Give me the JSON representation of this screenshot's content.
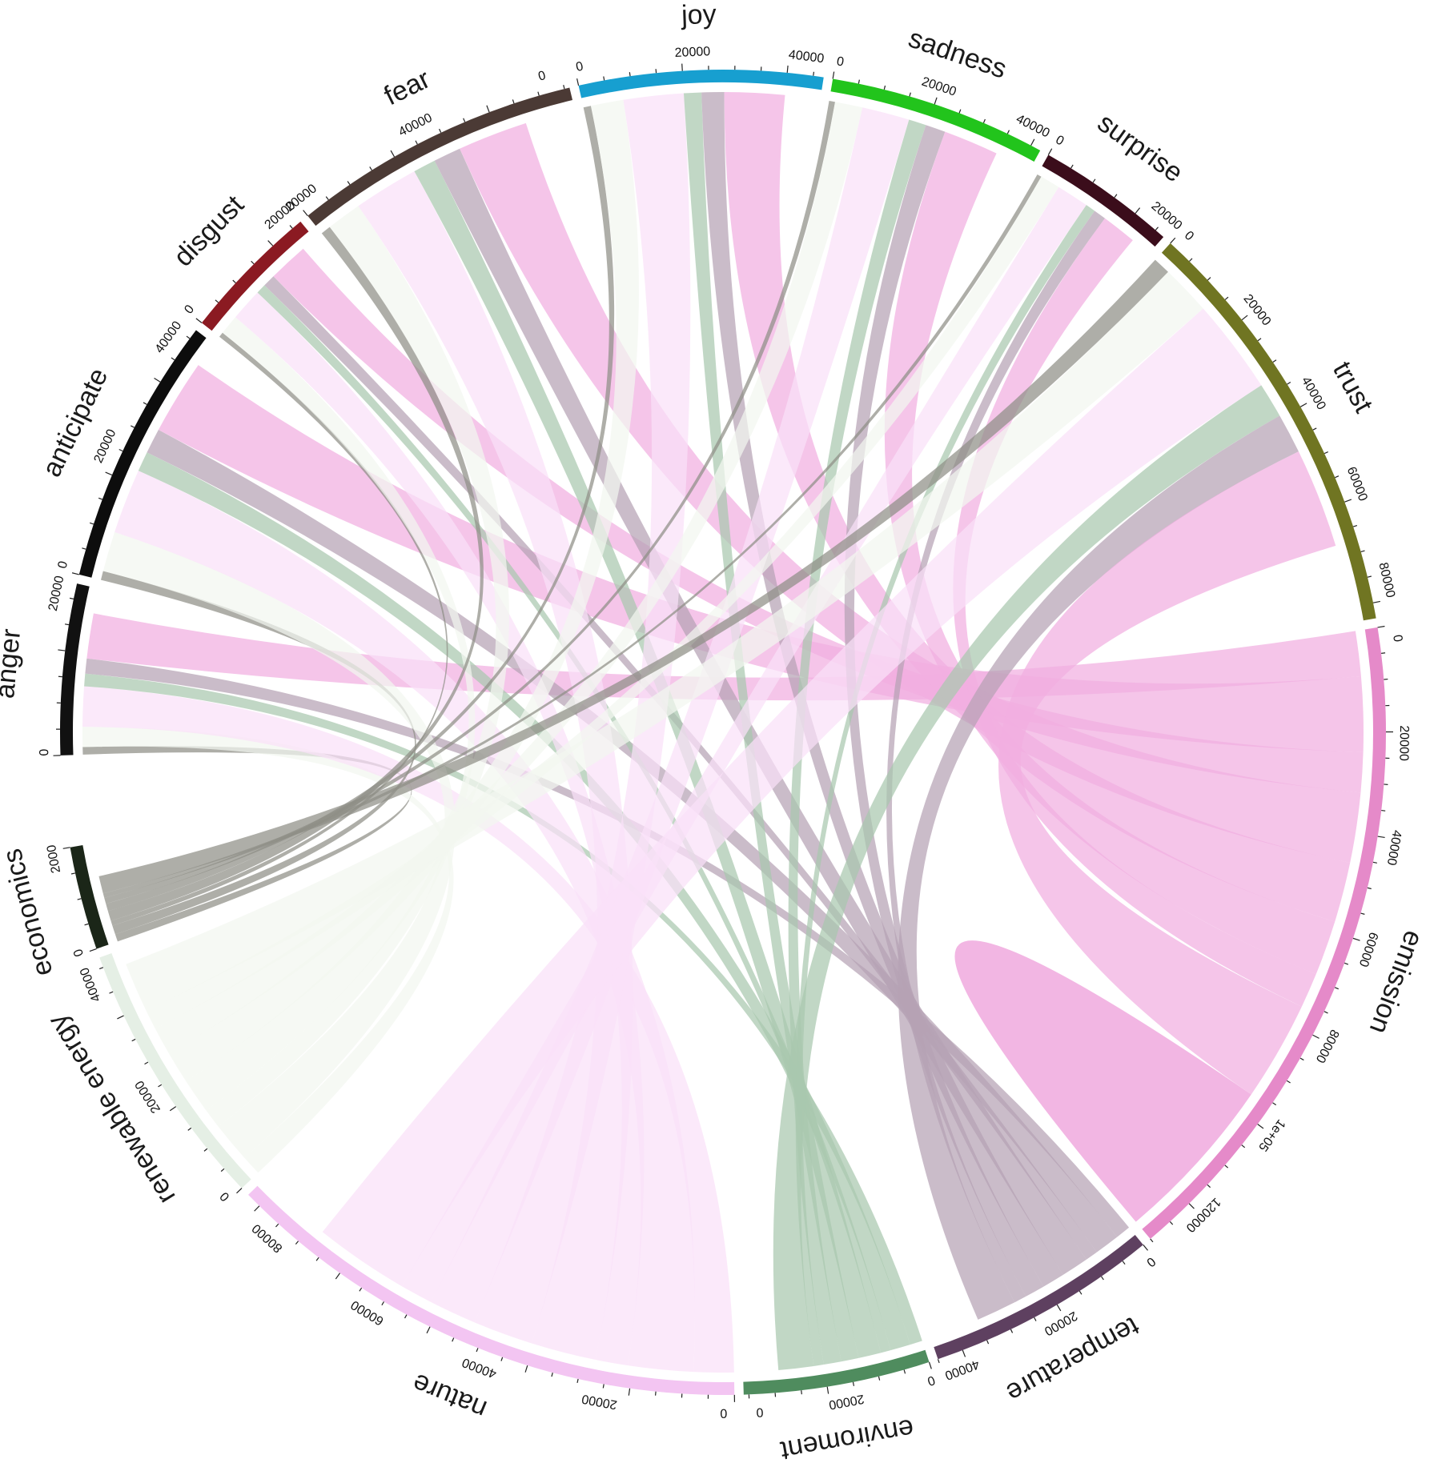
{
  "chart_data": {
    "type": "chord",
    "title": "",
    "sectors": [
      {
        "name": "anger",
        "color": "#111111",
        "total": 33000,
        "ticks": [
          0,
          20000
        ]
      },
      {
        "name": "anticipate",
        "color": "#0d0d0d",
        "total": 52000,
        "ticks": [
          0,
          20000,
          40000
        ]
      },
      {
        "name": "disgust",
        "color": "#8b1a22",
        "total": 27000,
        "ticks": [
          0,
          20000
        ]
      },
      {
        "name": "fear",
        "color": "#4b3a35",
        "total": 56000,
        "ticks": [
          20000,
          40000,
          0
        ]
      },
      {
        "name": "joy",
        "color": "#179fd0",
        "total": 47000,
        "ticks": [
          0,
          20000,
          40000
        ]
      },
      {
        "name": "sadness",
        "color": "#22c41c",
        "total": 42000,
        "ticks": [
          0,
          20000,
          40000
        ]
      },
      {
        "name": "surprise",
        "color": "#3b0d1b",
        "total": 27000,
        "ticks": [
          0,
          20000
        ]
      },
      {
        "name": "trust",
        "color": "#707522",
        "total": 83000,
        "ticks": [
          0,
          20000,
          40000,
          60000,
          80000
        ]
      },
      {
        "name": "emission",
        "color": "#e58ac9",
        "total": 130000,
        "ticks": [
          0,
          20000,
          40000,
          60000,
          "80000",
          "1e+05",
          120000
        ]
      },
      {
        "name": "temperature",
        "color": "#5e4060",
        "total": 45000,
        "ticks": [
          0,
          20000,
          40000
        ]
      },
      {
        "name": "enviroment",
        "color": "#4f8c5e",
        "total": 36000,
        "ticks": [
          0,
          "20000",
          0
        ]
      },
      {
        "name": "nature",
        "color": "#f3c5f2",
        "total": 103000,
        "ticks": [
          0,
          20000,
          40000,
          "60000",
          "80000"
        ]
      },
      {
        "name": "renewable energy",
        "color": "#e5efe5",
        "total": 52000,
        "ticks": [
          0,
          "20000",
          "40000"
        ]
      },
      {
        "name": "economics",
        "color": "#1b2618",
        "total": 20000,
        "ticks": [
          0,
          2000
        ]
      }
    ],
    "emotions": [
      "anger",
      "anticipate",
      "disgust",
      "fear",
      "joy",
      "sadness",
      "surprise",
      "trust"
    ],
    "topics": [
      "emission",
      "temperature",
      "enviroment",
      "nature",
      "renewable energy",
      "economics"
    ],
    "topic_link_colors": {
      "emission": "#f1aee0",
      "temperature": "#b6a2b4",
      "enviroment": "#a9c7ae",
      "nature": "#f9e0f8",
      "renewable energy": "#f2f6f0",
      "economics": "#8f8f86"
    },
    "links": {
      "anger": {
        "emission": 9000,
        "temperature": 3000,
        "enviroment": 2500,
        "nature": 8000,
        "renewable energy": 4000,
        "economics": 1500
      },
      "anticipate": {
        "emission": 15000,
        "temperature": 5000,
        "enviroment": 4000,
        "nature": 13000,
        "renewable energy": 8000,
        "economics": 1800
      },
      "disgust": {
        "emission": 8000,
        "temperature": 2500,
        "enviroment": 2000,
        "nature": 6500,
        "renewable energy": 4000,
        "economics": 1000
      },
      "fear": {
        "emission": 14000,
        "temperature": 5500,
        "enviroment": 4500,
        "nature": 13000,
        "renewable energy": 7000,
        "economics": 2000
      },
      "joy": {
        "emission": 12000,
        "temperature": 4500,
        "enviroment": 3500,
        "nature": 12000,
        "renewable energy": 6500,
        "economics": 1500
      },
      "sadness": {
        "emission": 11000,
        "temperature": 4000,
        "enviroment": 3500,
        "nature": 9500,
        "renewable energy": 5500,
        "economics": 1200
      },
      "surprise": {
        "emission": 7000,
        "temperature": 2500,
        "enviroment": 2000,
        "nature": 6500,
        "renewable energy": 4000,
        "economics": 900
      },
      "trust": {
        "emission": 20000,
        "temperature": 8000,
        "enviroment": 7000,
        "nature": 19000,
        "renewable energy": 10000,
        "economics": 3500
      }
    },
    "self_link": {
      "sector": "emission",
      "value": 32000
    },
    "legend": "none",
    "grid": false
  }
}
